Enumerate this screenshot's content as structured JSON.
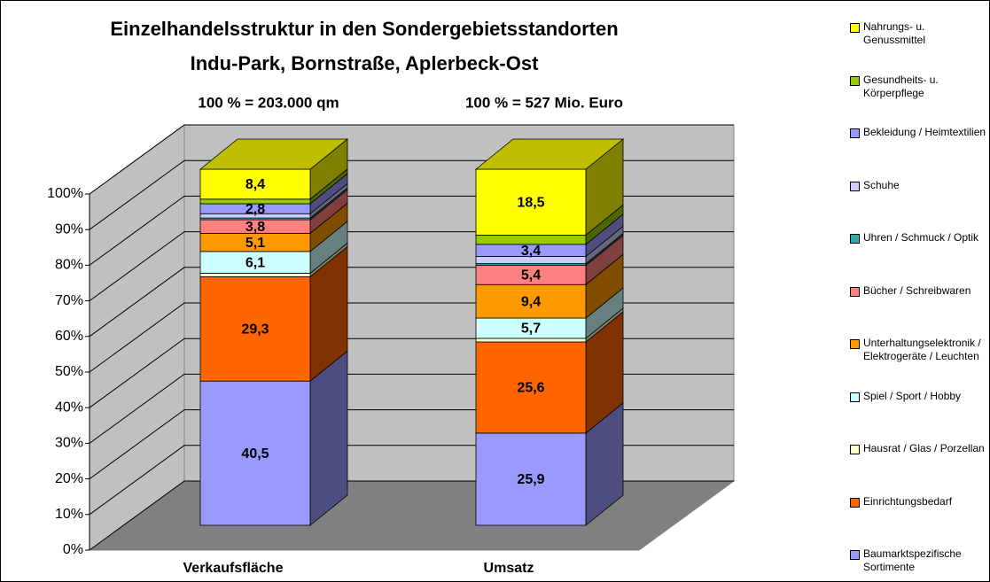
{
  "chart_data": {
    "type": "bar3d_stacked",
    "title": [
      "Einzelhandelsstruktur in den Sondergebietsstandorten",
      "Indu-Park, Bornstraße, Aplerbeck-Ost"
    ],
    "categories": [
      "Verkaufsfläche",
      "Umsatz"
    ],
    "category_notes": [
      "100 % = 203.000 qm",
      "100 % = 527 Mio. Euro"
    ],
    "ylim": [
      0,
      100
    ],
    "yticks": [
      {
        "value": 0,
        "label": "0%"
      },
      {
        "value": 10,
        "label": "10%"
      },
      {
        "value": 20,
        "label": "20%"
      },
      {
        "value": 30,
        "label": "30%"
      },
      {
        "value": 40,
        "label": "40%"
      },
      {
        "value": 50,
        "label": "50%"
      },
      {
        "value": 60,
        "label": "60%"
      },
      {
        "value": 70,
        "label": "70%"
      },
      {
        "value": 80,
        "label": "80%"
      },
      {
        "value": 90,
        "label": "90%"
      },
      {
        "value": 100,
        "label": "100%"
      }
    ],
    "grid": true,
    "legend": "right",
    "series": [
      {
        "name": "Baumarktspezifische Sortimente",
        "color": "#9999ff",
        "values": [
          40.5,
          25.9
        ],
        "value_labels": [
          "40,5",
          "25,9"
        ]
      },
      {
        "name": "Einrichtungsbedarf",
        "color": "#ff6600",
        "values": [
          29.3,
          25.6
        ],
        "value_labels": [
          "29,3",
          "25,6"
        ]
      },
      {
        "name": "Hausrat / Glas / Porzellan",
        "color": "#ffffcc",
        "values": [
          1.0,
          1.0
        ],
        "value_labels": [
          null,
          null
        ]
      },
      {
        "name": "Spiel / Sport / Hobby",
        "color": "#ccffff",
        "values": [
          6.1,
          5.7
        ],
        "value_labels": [
          "6,1",
          "5,7"
        ]
      },
      {
        "name": "Unterhaltungselektronik / Elektrogeräte / Leuchten",
        "color": "#ff9900",
        "values": [
          5.1,
          9.4
        ],
        "value_labels": [
          "5,1",
          "9,4"
        ]
      },
      {
        "name": "Bücher / Schreibwaren",
        "color": "#ff8080",
        "values": [
          3.8,
          5.4
        ],
        "value_labels": [
          "3,8",
          "5,4"
        ]
      },
      {
        "name": "Uhren / Schmuck / Optik",
        "color": "#33aaaa",
        "values": [
          0.5,
          0.5
        ],
        "value_labels": [
          null,
          null
        ]
      },
      {
        "name": "Schuhe",
        "color": "#ccccff",
        "values": [
          1.2,
          2.0
        ],
        "value_labels": [
          null,
          null
        ]
      },
      {
        "name": "Bekleidung / Heimtextilien",
        "color": "#9999ff",
        "values": [
          2.8,
          3.4
        ],
        "value_labels": [
          "2,8",
          "3,4"
        ]
      },
      {
        "name": "Gesundheits- u. Körperpflege",
        "color": "#99cc00",
        "values": [
          1.3,
          2.6
        ],
        "value_labels": [
          null,
          null
        ]
      },
      {
        "name": "Nahrungs- u. Genussmittel",
        "color": "#ffff00",
        "values": [
          8.4,
          18.5
        ],
        "value_labels": [
          "8,4",
          "18,5"
        ]
      }
    ]
  }
}
